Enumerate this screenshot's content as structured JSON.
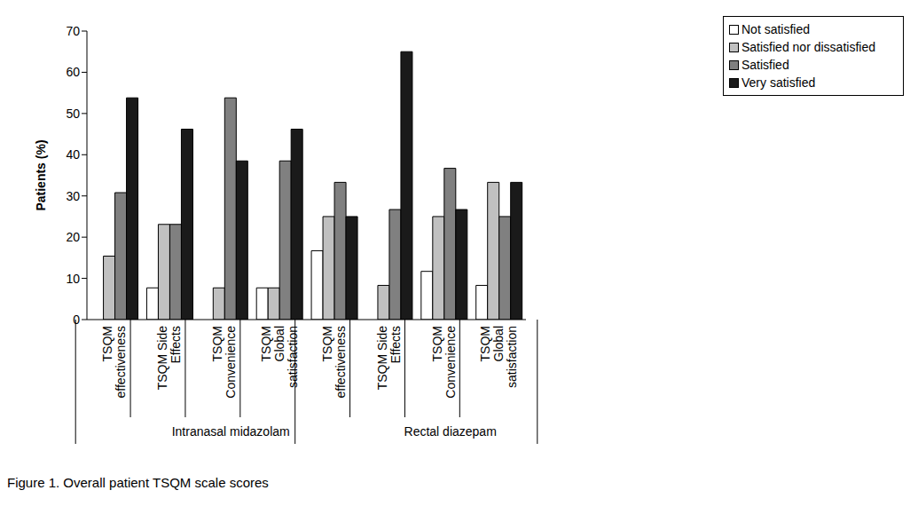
{
  "chart_data": {
    "type": "bar",
    "title": "Figure 1. Overall patient TSQM scale scores",
    "y_label": "Patients (%)",
    "categories": [
      "TSQM effectiveness",
      "TSQM Side Effects",
      "TSQM Convenience",
      "TSQM Global satisfaction",
      "TSQM effectiveness",
      "TSQM Side Effects",
      "TSQM Convenience",
      "TSQM Global satisfaction"
    ],
    "category_groups": [
      "Intranasal midazolam",
      "Intranasal midazolam",
      "Intranasal midazolam",
      "Intranasal midazolam",
      "Rectal diazepam",
      "Rectal diazepam",
      "Rectal diazepam",
      "Rectal diazepam"
    ],
    "series": [
      {
        "name": "Not satisfied",
        "color": "#ffffff",
        "values": [
          0,
          7.7,
          0,
          7.7,
          16.7,
          0,
          11.7,
          8.3
        ]
      },
      {
        "name": "Satisfied nor dissatisfied",
        "color": "#c0c0c0",
        "values": [
          15.4,
          23.1,
          7.7,
          7.7,
          25,
          8.3,
          25,
          33.3
        ]
      },
      {
        "name": "Satisfied",
        "color": "#808080",
        "values": [
          30.8,
          23.1,
          53.8,
          38.5,
          33.3,
          26.7,
          36.7,
          25
        ]
      },
      {
        "name": "Very satisfied",
        "color": "#1a1a1a",
        "values": [
          53.8,
          46.2,
          38.5,
          46.2,
          25,
          65,
          26.7,
          33.3
        ]
      }
    ],
    "ylim": [
      0,
      70
    ],
    "yticks": [
      0,
      10,
      20,
      30,
      40,
      50,
      60,
      70
    ],
    "grid": false,
    "legend": "upper right"
  }
}
